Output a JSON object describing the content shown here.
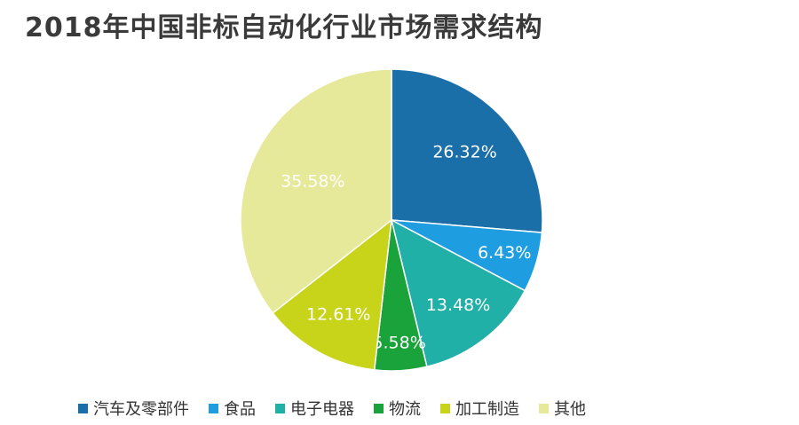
{
  "chart_data": {
    "type": "pie",
    "title": "2018年中国非标自动化行业市场需求结构",
    "slices": [
      {
        "label": "汽车及零部件",
        "value": 26.32,
        "display": "26.32%",
        "color": "#1a6fa8"
      },
      {
        "label": "食品",
        "value": 6.43,
        "display": "6.43%",
        "color": "#1e9ee0"
      },
      {
        "label": "电子电器",
        "value": 13.48,
        "display": "13.48%",
        "color": "#20b0a8"
      },
      {
        "label": "物流",
        "value": 5.58,
        "display": "5.58%",
        "color": "#1aa33a"
      },
      {
        "label": "加工制造",
        "value": 12.61,
        "display": "12.61%",
        "color": "#c8d41a"
      },
      {
        "label": "其他",
        "value": 35.58,
        "display": "35.58%",
        "color": "#e6e89a"
      }
    ],
    "start": "12 o'clock",
    "direction": "clockwise",
    "legend_position": "bottom"
  }
}
